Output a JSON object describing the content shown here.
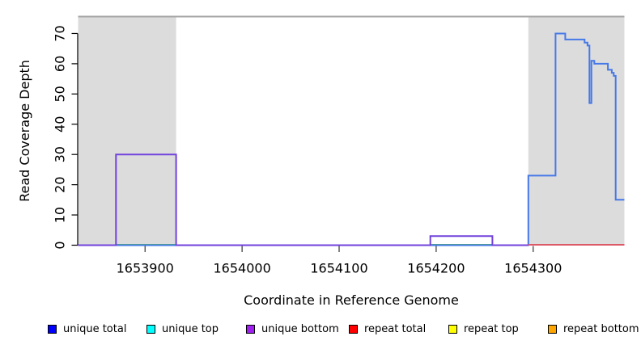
{
  "chart_data": {
    "type": "line",
    "subtype": "step-coverage",
    "title": "",
    "xlabel": "Coordinate in Reference Genome",
    "ylabel": "Read Coverage Depth",
    "xlim": [
      1653831,
      1654394
    ],
    "ylim": [
      0,
      75.6
    ],
    "grid": false,
    "legend_position": "bottom",
    "x_ticks": [
      {
        "value": 1653900,
        "label": "1653900"
      },
      {
        "value": 1654000,
        "label": "1654000"
      },
      {
        "value": 1654100,
        "label": "1654100"
      },
      {
        "value": 1654200,
        "label": "1654200"
      },
      {
        "value": 1654300,
        "label": "1654300"
      }
    ],
    "y_ticks": [
      {
        "value": 0,
        "label": "0"
      },
      {
        "value": 10,
        "label": "10"
      },
      {
        "value": 20,
        "label": "20"
      },
      {
        "value": 30,
        "label": "30"
      },
      {
        "value": 40,
        "label": "40"
      },
      {
        "value": 50,
        "label": "50"
      },
      {
        "value": 60,
        "label": "60"
      },
      {
        "value": 70,
        "label": "70"
      }
    ],
    "top_border_color": "#a6a6a6",
    "repeat_region_shading": {
      "color": "#dcdcdc",
      "regions": [
        [
          1653831,
          1653932
        ],
        [
          1654295,
          1654394
        ]
      ]
    },
    "series": [
      {
        "name": "green zero baseline",
        "line_color": "#55be55",
        "value": 0,
        "segments": [
          [
            1653870,
            1653932
          ],
          [
            1654194,
            1654258
          ]
        ]
      },
      {
        "name": "unique total",
        "line_color": "#4678e8",
        "steps": [
          [
            1653831,
            0
          ],
          [
            1654295,
            23
          ],
          [
            1654323,
            70
          ],
          [
            1654333,
            68
          ],
          [
            1654353,
            67
          ],
          [
            1654356,
            66
          ],
          [
            1654358,
            47
          ],
          [
            1654360,
            61
          ],
          [
            1654363,
            60
          ],
          [
            1654377,
            58
          ],
          [
            1654381,
            57
          ],
          [
            1654383,
            56
          ],
          [
            1654385,
            15
          ]
        ],
        "end": 1654394
      },
      {
        "name": "unique bottom",
        "line_color": "#7142dc",
        "steps": [
          [
            1653831,
            0
          ],
          [
            1653870,
            30
          ],
          [
            1653932,
            0
          ],
          [
            1654194,
            3
          ],
          [
            1654258,
            0
          ]
        ],
        "end": 1654295
      },
      {
        "name": "repeat total",
        "line_color": "#dc5a68",
        "value": 0,
        "segments": [
          [
            1654295,
            1654394
          ]
        ]
      }
    ]
  },
  "legend": {
    "items": [
      {
        "label": "unique total",
        "color": "#0000ff"
      },
      {
        "label": "unique top",
        "color": "#00ffff"
      },
      {
        "label": "unique bottom",
        "color": "#a020f0"
      },
      {
        "label": "repeat total",
        "color": "#ff0000"
      },
      {
        "label": "repeat top",
        "color": "#ffff00"
      },
      {
        "label": "repeat bottom",
        "color": "#ffa500"
      }
    ]
  }
}
